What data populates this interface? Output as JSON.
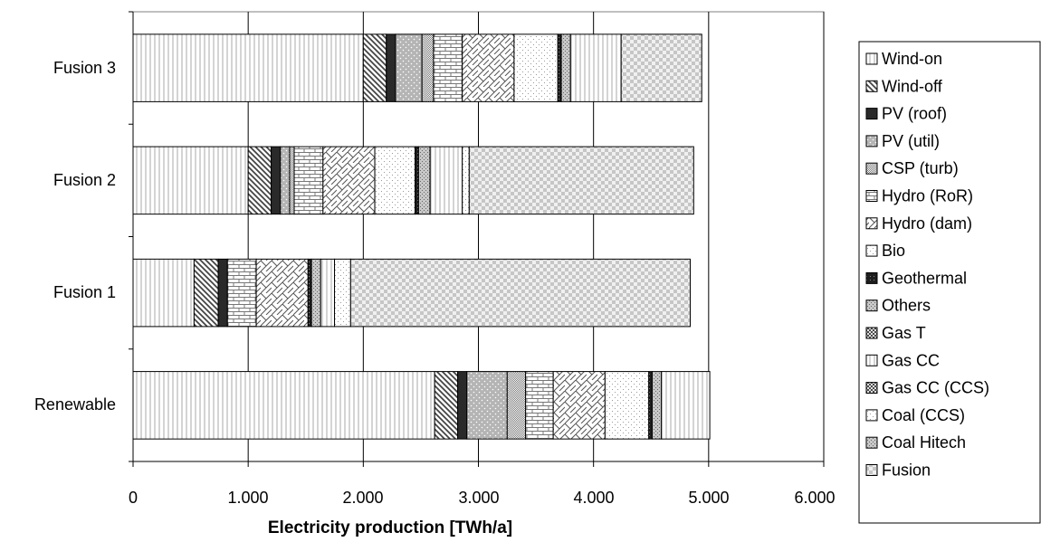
{
  "chart_data": {
    "type": "bar",
    "orientation": "horizontal",
    "stacked": true,
    "title": "",
    "xlabel": "Electricity production [TWh/a]",
    "ylabel": "",
    "xlim": [
      0,
      6000
    ],
    "x_ticks": [
      0,
      1000,
      2000,
      3000,
      4000,
      5000,
      6000
    ],
    "x_tick_labels": [
      "0",
      "1.000",
      "2.000",
      "3.000",
      "4.000",
      "5.000",
      "6.000"
    ],
    "grid": "vertical",
    "legend_position": "right",
    "categories": [
      "Fusion 3",
      "Fusion 2",
      "Fusion 1",
      "Renewable"
    ],
    "series": [
      {
        "name": "Wind-on",
        "pattern": "vlines",
        "values": [
          2000,
          1000,
          530,
          2620
        ]
      },
      {
        "name": "Wind-off",
        "pattern": "diag",
        "values": [
          200,
          200,
          210,
          200
        ]
      },
      {
        "name": "PV (roof)",
        "pattern": "solid",
        "values": [
          80,
          80,
          80,
          80
        ]
      },
      {
        "name": "PV (util)",
        "pattern": "dots",
        "values": [
          230,
          80,
          0,
          350
        ]
      },
      {
        "name": "CSP (turb)",
        "pattern": "fine",
        "values": [
          100,
          40,
          0,
          160
        ]
      },
      {
        "name": "Hydro (RoR)",
        "pattern": "brick",
        "values": [
          250,
          250,
          250,
          240
        ]
      },
      {
        "name": "Hydro (dam)",
        "pattern": "zigzag",
        "values": [
          450,
          450,
          450,
          450
        ]
      },
      {
        "name": "Bio",
        "pattern": "sparse",
        "values": [
          380,
          350,
          0,
          380
        ]
      },
      {
        "name": "Geothermal",
        "pattern": "dark",
        "values": [
          30,
          30,
          30,
          30
        ]
      },
      {
        "name": "Others",
        "pattern": "grain",
        "values": [
          80,
          100,
          80,
          80
        ]
      },
      {
        "name": "Gas T",
        "pattern": "checker-dark",
        "values": [
          0,
          0,
          0,
          0
        ]
      },
      {
        "name": "Gas CC",
        "pattern": "vlines",
        "values": [
          440,
          280,
          120,
          420
        ]
      },
      {
        "name": "Gas CC (CCS)",
        "pattern": "checker-dark",
        "values": [
          0,
          0,
          0,
          0
        ]
      },
      {
        "name": "Coal (CCS)",
        "pattern": "sparse",
        "values": [
          0,
          60,
          140,
          0
        ]
      },
      {
        "name": "Coal Hitech",
        "pattern": "grain",
        "values": [
          0,
          0,
          0,
          0
        ]
      },
      {
        "name": "Fusion",
        "pattern": "checker",
        "values": [
          700,
          1950,
          2950,
          0
        ]
      }
    ]
  }
}
